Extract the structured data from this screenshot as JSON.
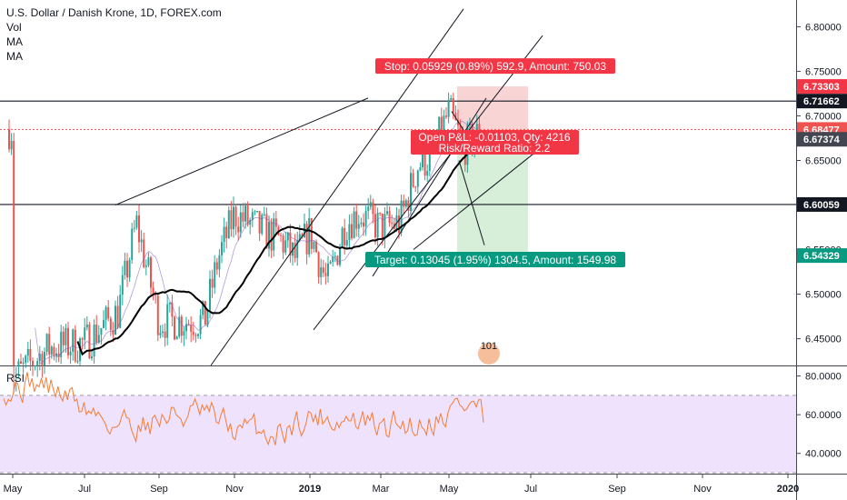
{
  "legend": {
    "title": "U.S. Dollar / Danish Krone, 1D, FOREX.com",
    "vol": "Vol",
    "ma1": "MA",
    "ma2": "MA"
  },
  "rsi_label": "RSI",
  "colors": {
    "up": "#26a69a",
    "down": "#ef5350",
    "ma": "#000000",
    "rsi": "#f57c36",
    "rsi_band": "#e9d8fb",
    "stop_zone": "#f9d4d4",
    "target_zone": "#d7eed8",
    "stop_label": "#f23645",
    "target_label": "#089981",
    "current_price": "#ef5350",
    "dark_tag": "#131722"
  },
  "position": {
    "stop_text": "Stop: 0.05929 (0.89%) 592.9, Amount: 750.03",
    "open_text": "Open P&L: -0.01103, Qty: 4216",
    "ratio_text": "Risk/Reward Ratio: 2.2",
    "target_text": "Target: 0.13045 (1.95%) 1304.5, Amount: 1549.98",
    "stop_level": 6.73303,
    "entry_level": 6.67374,
    "target_level": 6.54329
  },
  "price_tags": [
    {
      "text": "6.73303",
      "value": 6.73303,
      "style": "stop"
    },
    {
      "text": "6.71662",
      "value": 6.71662,
      "style": "dark"
    },
    {
      "text": "6.68477",
      "value": 6.68477,
      "style": "current"
    },
    {
      "text": "6.67374",
      "value": 6.67374,
      "style": "darkgray"
    },
    {
      "text": "6.60059",
      "value": 6.60059,
      "style": "dark"
    },
    {
      "text": "6.54329",
      "value": 6.54329,
      "style": "target"
    }
  ],
  "horizontal_levels": [
    6.71662,
    6.60059
  ],
  "current_price": 6.68477,
  "watermark": "101",
  "chart_data": {
    "type": "candlestick",
    "title": "U.S. Dollar / Danish Krone, 1D, FOREX.com",
    "x_ticks": [
      "May",
      "Jul",
      "Sep",
      "Nov",
      "2019",
      "Mar",
      "May",
      "Jul",
      "Sep",
      "Nov",
      "2020"
    ],
    "y_ticks": [
      "6.80000",
      "6.75000",
      "6.70000",
      "6.65000",
      "6.55000",
      "6.50000",
      "6.45000"
    ],
    "y_tick_values": [
      6.8,
      6.75,
      6.7,
      6.65,
      6.55,
      6.5,
      6.45
    ],
    "ylim": [
      6.42,
      6.83
    ],
    "series_close_path": [
      [
        "May",
        6.405
      ],
      [
        "Jun",
        6.44
      ],
      [
        "Jul",
        6.445
      ],
      [
        "Aug",
        6.48
      ],
      [
        "Aug 15",
        6.58
      ],
      [
        "Sep",
        6.47
      ],
      [
        "Oct",
        6.47
      ],
      [
        "Oct 20",
        6.54
      ],
      [
        "Nov",
        6.59
      ],
      [
        "Nov 15",
        6.57
      ],
      [
        "Dec",
        6.56
      ],
      [
        "Dec 15",
        6.54
      ],
      [
        "2019",
        6.57
      ],
      [
        "Jan 15",
        6.51
      ],
      [
        "Feb",
        6.58
      ],
      [
        "Feb 15",
        6.59
      ],
      [
        "Mar",
        6.575
      ],
      [
        "Mar 15",
        6.58
      ],
      [
        "Apr",
        6.645
      ],
      [
        "Apr 15",
        6.655
      ],
      [
        "May",
        6.705
      ],
      [
        "May 15",
        6.665
      ],
      [
        "May 25",
        6.685
      ]
    ],
    "rsi": {
      "ylim": [
        30,
        85
      ],
      "y_ticks": [
        "80.0000",
        "60.0000",
        "40.0000"
      ],
      "y_tick_values": [
        80,
        60,
        40
      ],
      "band": [
        30,
        70
      ],
      "last_value": 56
    }
  }
}
